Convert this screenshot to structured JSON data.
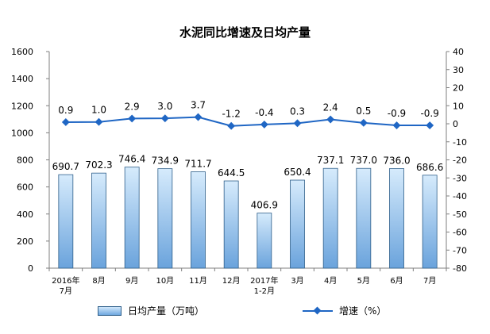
{
  "chart_data": {
    "type": "bar+line",
    "title": "水泥同比增速及日均产量",
    "categories": [
      [
        "2016年",
        "7月"
      ],
      [
        "8月"
      ],
      [
        "9月"
      ],
      [
        "10月"
      ],
      [
        "11月"
      ],
      [
        "12月"
      ],
      [
        "2017年",
        "1-2月"
      ],
      [
        "3月"
      ],
      [
        "4月"
      ],
      [
        "5月"
      ],
      [
        "6月"
      ],
      [
        "7月"
      ]
    ],
    "series": [
      {
        "name": "日均产量（万吨）",
        "type": "bar",
        "axis": "left",
        "values": [
          690.7,
          702.3,
          746.4,
          734.9,
          711.7,
          644.5,
          406.9,
          650.4,
          737.1,
          737.0,
          736.0,
          686.6
        ],
        "labels": [
          "690.7",
          "702.3",
          "746.4",
          "734.9",
          "711.7",
          "644.5",
          "406.9",
          "650.4",
          "737.1",
          "737.0",
          "736.0",
          "686.6"
        ],
        "color": "#8ec0ee"
      },
      {
        "name": "增速（%）",
        "type": "line",
        "axis": "right",
        "values": [
          0.9,
          1.0,
          2.9,
          3.0,
          3.7,
          -1.2,
          -0.4,
          0.3,
          2.4,
          0.5,
          -0.9,
          -0.9
        ],
        "labels": [
          "0.9",
          "1.0",
          "2.9",
          "3.0",
          "3.7",
          "-1.2",
          "-0.4",
          "0.3",
          "2.4",
          "0.5",
          "-0.9",
          "-0.9"
        ],
        "color": "#1f66c4"
      }
    ],
    "left_axis": {
      "min": 0,
      "max": 1600,
      "step": 200
    },
    "right_axis": {
      "min": -80,
      "max": 40,
      "step": 10
    },
    "grid": false,
    "legend_position": "bottom"
  }
}
